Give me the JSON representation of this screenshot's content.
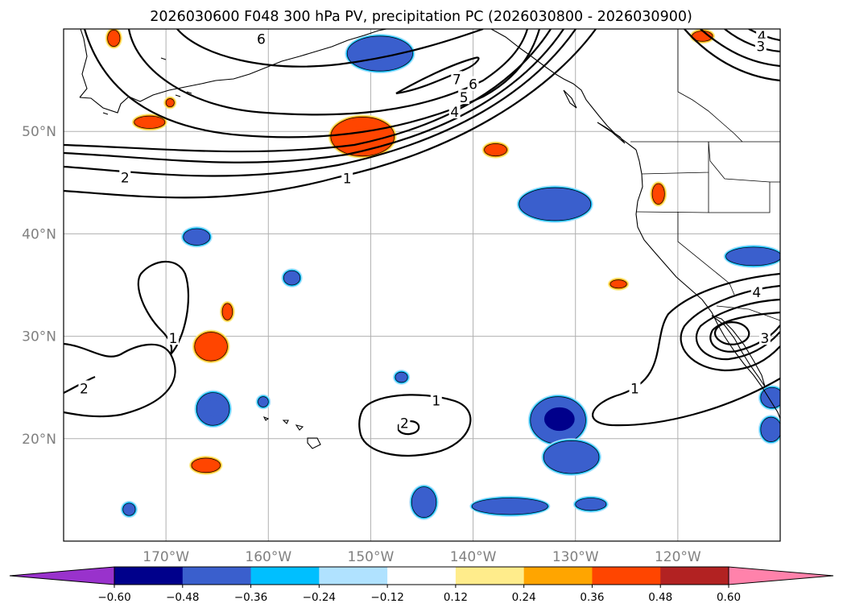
{
  "title": "2026030600 F048 300 hPa PV, precipitation PC (2026030800 - 2026030900)",
  "map": {
    "projection": "PlateCarree",
    "extent": {
      "lon_min": -180,
      "lon_max": -110,
      "lat_min": 10,
      "lat_max": 60
    },
    "grid": true,
    "lat_labels": [
      {
        "lat": 50,
        "label": "50°N"
      },
      {
        "lat": 40,
        "label": "40°N"
      },
      {
        "lat": 30,
        "label": "30°N"
      },
      {
        "lat": 20,
        "label": "20°N"
      }
    ],
    "lon_labels": [
      {
        "lon": -170,
        "label": "170°W"
      },
      {
        "lon": -160,
        "label": "160°W"
      },
      {
        "lon": -150,
        "label": "150°W"
      },
      {
        "lon": -140,
        "label": "140°W"
      },
      {
        "lon": -130,
        "label": "130°W"
      },
      {
        "lon": -120,
        "label": "120°W"
      }
    ]
  },
  "pv_contours": {
    "variable": "300 hPa PV",
    "contour_labels": [
      {
        "text": "6",
        "lon": -160.7,
        "lat": 59.0
      },
      {
        "text": "7",
        "lon": -141.6,
        "lat": 55.1
      },
      {
        "text": "6",
        "lon": -140.0,
        "lat": 54.6
      },
      {
        "text": "5",
        "lon": -140.9,
        "lat": 53.3
      },
      {
        "text": "4",
        "lon": -141.8,
        "lat": 51.9
      },
      {
        "text": "2",
        "lon": -174.0,
        "lat": 45.5
      },
      {
        "text": "1",
        "lon": -152.3,
        "lat": 45.4
      },
      {
        "text": "4",
        "lon": -111.8,
        "lat": 59.3
      },
      {
        "text": "3",
        "lon": -111.9,
        "lat": 58.3
      },
      {
        "text": "1",
        "lon": -169.3,
        "lat": 29.8
      },
      {
        "text": "2",
        "lon": -178.0,
        "lat": 24.9
      },
      {
        "text": "1",
        "lon": -143.6,
        "lat": 23.7
      },
      {
        "text": "2",
        "lon": -146.7,
        "lat": 21.5
      },
      {
        "text": "1",
        "lon": -124.2,
        "lat": 24.9
      },
      {
        "text": "4",
        "lon": -112.3,
        "lat": 34.3
      },
      {
        "text": "3",
        "lon": -111.5,
        "lat": 29.8
      }
    ]
  },
  "precip_pc": {
    "variable": "precipitation PC",
    "period": "2026030800 - 2026030900",
    "cells": [
      {
        "lon": -150.8,
        "lat": 49.5,
        "rlon": 3.1,
        "rlat": 1.9,
        "value": 0.45
      },
      {
        "lon": -171.6,
        "lat": 50.9,
        "rlon": 1.5,
        "rlat": 0.6,
        "value": 0.3
      },
      {
        "lon": -175.1,
        "lat": 59.1,
        "rlon": 0.6,
        "rlat": 0.8,
        "value": 0.3
      },
      {
        "lon": -169.6,
        "lat": 52.8,
        "rlon": 0.4,
        "rlat": 0.4,
        "value": 0.3
      },
      {
        "lon": -137.8,
        "lat": 48.2,
        "rlon": 1.1,
        "rlat": 0.6,
        "value": 0.3
      },
      {
        "lon": -121.9,
        "lat": 43.9,
        "rlon": 0.6,
        "rlat": 1.0,
        "value": 0.3
      },
      {
        "lon": -117.6,
        "lat": 59.3,
        "rlon": 1.0,
        "rlat": 0.5,
        "value": 0.3
      },
      {
        "lon": -165.6,
        "lat": 29.0,
        "rlon": 1.6,
        "rlat": 1.4,
        "value": 0.34
      },
      {
        "lon": -164.0,
        "lat": 32.4,
        "rlon": 0.5,
        "rlat": 0.8,
        "value": 0.3
      },
      {
        "lon": -125.8,
        "lat": 35.1,
        "rlon": 0.8,
        "rlat": 0.4,
        "value": 0.3
      },
      {
        "lon": -166.1,
        "lat": 17.4,
        "rlon": 1.4,
        "rlat": 0.7,
        "value": 0.3
      },
      {
        "lon": -149.1,
        "lat": 57.6,
        "rlon": 3.2,
        "rlat": 1.7,
        "value": -0.3
      },
      {
        "lon": -132.0,
        "lat": 42.9,
        "rlon": 3.5,
        "rlat": 1.6,
        "value": -0.3
      },
      {
        "lon": -167.0,
        "lat": 39.7,
        "rlon": 1.3,
        "rlat": 0.8,
        "value": -0.3
      },
      {
        "lon": -157.7,
        "lat": 35.7,
        "rlon": 0.8,
        "rlat": 0.7,
        "value": -0.3
      },
      {
        "lon": -165.4,
        "lat": 22.9,
        "rlon": 1.6,
        "rlat": 1.6,
        "value": -0.45
      },
      {
        "lon": -160.5,
        "lat": 23.6,
        "rlon": 0.5,
        "rlat": 0.5,
        "value": -0.3
      },
      {
        "lon": -147.0,
        "lat": 26.0,
        "rlon": 0.6,
        "rlat": 0.5,
        "value": -0.3
      },
      {
        "lon": -131.7,
        "lat": 21.8,
        "rlon": 2.7,
        "rlat": 2.3,
        "value": -0.5
      },
      {
        "lon": -130.4,
        "lat": 18.2,
        "rlon": 2.7,
        "rlat": 1.6,
        "value": -0.33
      },
      {
        "lon": -144.8,
        "lat": 13.8,
        "rlon": 1.2,
        "rlat": 1.5,
        "value": -0.3
      },
      {
        "lon": -136.4,
        "lat": 13.4,
        "rlon": 3.7,
        "rlat": 0.8,
        "value": -0.3
      },
      {
        "lon": -128.5,
        "lat": 13.6,
        "rlon": 1.5,
        "rlat": 0.6,
        "value": -0.3
      },
      {
        "lon": -173.6,
        "lat": 13.1,
        "rlon": 0.6,
        "rlat": 0.6,
        "value": -0.3
      },
      {
        "lon": -112.6,
        "lat": 37.8,
        "rlon": 2.7,
        "rlat": 0.9,
        "value": -0.33
      },
      {
        "lon": -110.8,
        "lat": 24.0,
        "rlon": 1.1,
        "rlat": 1.0,
        "value": -0.3
      },
      {
        "lon": -110.9,
        "lat": 20.9,
        "rlon": 1.0,
        "rlat": 1.2,
        "value": -0.42
      }
    ]
  },
  "colorbar": {
    "orientation": "horizontal",
    "extend": "both",
    "levels": [
      -0.6,
      -0.48,
      -0.36,
      -0.24,
      -0.12,
      0.12,
      0.24,
      0.36,
      0.48,
      0.6
    ],
    "tick_labels": [
      "−0.60",
      "−0.48",
      "−0.36",
      "−0.24",
      "−0.12",
      "0.12",
      "0.24",
      "0.36",
      "0.48",
      "0.60"
    ],
    "colors": [
      "#9932cc",
      "#00008b",
      "#3a5fcd",
      "#00bfff",
      "#b0e2ff",
      "#ffffff",
      "#ffec8b",
      "#ffa500",
      "#ff4500",
      "#b22222",
      "#ff82ab"
    ]
  }
}
